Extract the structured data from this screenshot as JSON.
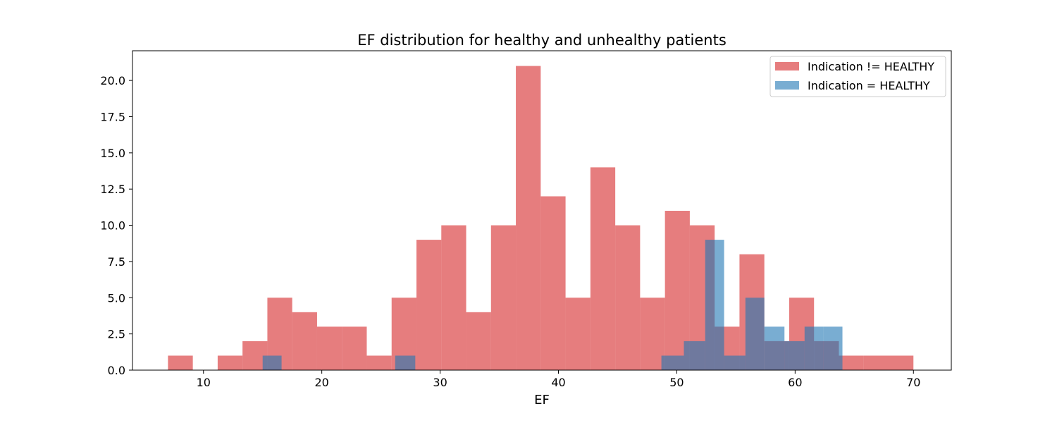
{
  "chart_data": {
    "type": "bar",
    "title": "EF distribution for healthy and unhealthy patients",
    "xlabel": "EF",
    "ylabel": "",
    "xlim": [
      4,
      73.2
    ],
    "ylim": [
      0,
      22.05
    ],
    "xticks": [
      10,
      20,
      30,
      40,
      50,
      60,
      70
    ],
    "yticks": [
      0.0,
      2.5,
      5.0,
      7.5,
      10.0,
      12.5,
      15.0,
      17.5,
      20.0
    ],
    "xtick_labels": [
      "10",
      "20",
      "30",
      "40",
      "50",
      "60",
      "70"
    ],
    "ytick_labels": [
      "0.0",
      "2.5",
      "5.0",
      "7.5",
      "10.0",
      "12.5",
      "15.0",
      "17.5",
      "20.0"
    ],
    "grid": false,
    "legend_position": "top-right",
    "series": [
      {
        "name": "Indication != HEALTHY",
        "color": "#d62728",
        "opacity": 0.6,
        "bins": [
          [
            7.0,
            9.1,
            1
          ],
          [
            9.1,
            11.2,
            0
          ],
          [
            11.2,
            13.3,
            1
          ],
          [
            13.3,
            15.4,
            2
          ],
          [
            15.4,
            17.5,
            5
          ],
          [
            17.5,
            19.6,
            4
          ],
          [
            19.6,
            21.7,
            3
          ],
          [
            21.7,
            23.8,
            3
          ],
          [
            23.8,
            25.9,
            1
          ],
          [
            25.9,
            28.0,
            5
          ],
          [
            28.0,
            30.1,
            9
          ],
          [
            30.1,
            32.2,
            10
          ],
          [
            32.2,
            34.3,
            4
          ],
          [
            34.3,
            36.4,
            10
          ],
          [
            36.4,
            38.5,
            21
          ],
          [
            38.5,
            40.6,
            12
          ],
          [
            40.6,
            42.7,
            5
          ],
          [
            42.7,
            44.8,
            14
          ],
          [
            44.8,
            46.9,
            10
          ],
          [
            46.9,
            49.0,
            5
          ],
          [
            49.0,
            51.1,
            11
          ],
          [
            51.1,
            53.2,
            10
          ],
          [
            53.2,
            55.3,
            3
          ],
          [
            55.3,
            57.4,
            8
          ],
          [
            57.4,
            59.5,
            2
          ],
          [
            59.5,
            61.6,
            5
          ],
          [
            61.6,
            63.7,
            2
          ],
          [
            63.7,
            65.8,
            1
          ],
          [
            65.8,
            67.9,
            1
          ],
          [
            67.9,
            70.0,
            1
          ]
        ]
      },
      {
        "name": "Indication = HEALTHY",
        "color": "#1f77b4",
        "opacity": 0.6,
        "bins": [
          [
            15.0,
            16.6,
            1
          ],
          [
            16.6,
            18.2,
            0
          ],
          [
            18.2,
            19.8,
            0
          ],
          [
            19.8,
            21.4,
            0
          ],
          [
            21.4,
            23.0,
            0
          ],
          [
            23.0,
            24.6,
            0
          ],
          [
            24.6,
            26.2,
            0
          ],
          [
            26.2,
            27.9,
            1
          ],
          [
            27.9,
            29.5,
            0
          ],
          [
            29.5,
            31.1,
            0
          ],
          [
            31.1,
            32.7,
            0
          ],
          [
            32.7,
            34.3,
            0
          ],
          [
            34.3,
            35.9,
            0
          ],
          [
            35.9,
            37.5,
            0
          ],
          [
            37.5,
            39.1,
            0
          ],
          [
            39.1,
            40.7,
            0
          ],
          [
            40.7,
            42.3,
            0
          ],
          [
            42.3,
            43.9,
            0
          ],
          [
            43.9,
            45.5,
            0
          ],
          [
            45.5,
            47.1,
            0
          ],
          [
            47.1,
            48.7,
            0
          ],
          [
            48.7,
            50.6,
            1
          ],
          [
            50.6,
            52.4,
            2
          ],
          [
            52.4,
            54.0,
            9
          ],
          [
            54.0,
            55.8,
            1
          ],
          [
            55.8,
            57.4,
            5
          ],
          [
            57.4,
            59.1,
            3
          ],
          [
            59.1,
            60.8,
            2
          ],
          [
            60.8,
            62.4,
            3
          ],
          [
            62.4,
            64.0,
            3
          ]
        ]
      }
    ]
  }
}
